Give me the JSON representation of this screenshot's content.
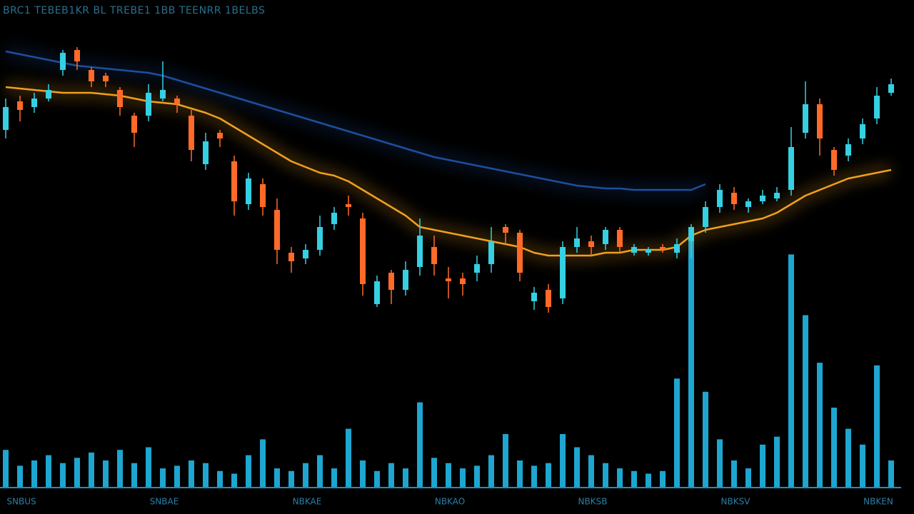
{
  "chart_data": {
    "type": "candlestick",
    "title": "BRC1 TEBEB1KR BL TREBE1 1BB TEENRR 1BELBS",
    "x": [
      null,
      "SNBUS",
      null,
      null,
      null,
      null,
      null,
      null,
      null,
      null,
      null,
      "SNBAE",
      null,
      null,
      null,
      null,
      null,
      null,
      null,
      null,
      null,
      "NBKAE",
      null,
      null,
      null,
      null,
      null,
      null,
      null,
      null,
      null,
      "NBKAO",
      null,
      null,
      null,
      null,
      null,
      null,
      null,
      null,
      null,
      "NBKSB",
      null,
      null,
      null,
      null,
      null,
      null,
      null,
      null,
      null,
      "NBKSV",
      null,
      null,
      null,
      null,
      null,
      null,
      null,
      null,
      null,
      "NBKEN",
      null
    ],
    "open": [
      67,
      77,
      75,
      78,
      88,
      95,
      88,
      86,
      81,
      72,
      72,
      78,
      78,
      72,
      55,
      66,
      56,
      41,
      48,
      39,
      24,
      22,
      25,
      34,
      41,
      36,
      6,
      17,
      11,
      19,
      26,
      15,
      15,
      17,
      20,
      33,
      31,
      7,
      11,
      8,
      26,
      28,
      27,
      32,
      24,
      24,
      26,
      24,
      28,
      33,
      40,
      45,
      40,
      42,
      43,
      46,
      66,
      76,
      60,
      58,
      64,
      71,
      80
    ],
    "high": [
      78,
      79,
      80,
      83,
      95,
      96,
      89,
      87,
      82,
      73,
      83,
      91,
      79,
      74,
      66,
      67,
      58,
      52,
      50,
      43,
      26,
      27,
      37,
      40,
      44,
      38,
      16,
      18,
      21,
      36,
      30,
      19,
      17,
      23,
      33,
      34,
      32,
      12,
      13,
      28,
      33,
      30,
      33,
      33,
      27,
      26,
      27,
      29,
      34,
      42,
      48,
      47,
      43,
      46,
      47,
      68,
      84,
      78,
      61,
      64,
      71,
      82,
      85
    ],
    "low": [
      64,
      70,
      73,
      77,
      86,
      88,
      82,
      82,
      72,
      61,
      70,
      77,
      73,
      56,
      53,
      61,
      37,
      39,
      37,
      20,
      17,
      20,
      23,
      32,
      37,
      9,
      5,
      6,
      9,
      16,
      16,
      8,
      9,
      14,
      17,
      27,
      14,
      4,
      3,
      6,
      24,
      23,
      25,
      24,
      23,
      23,
      24,
      22,
      22,
      31,
      38,
      39,
      38,
      41,
      42,
      44,
      64,
      58,
      51,
      56,
      62,
      69,
      79
    ],
    "close": [
      75,
      74,
      78,
      81,
      94,
      91,
      84,
      84,
      75,
      66,
      80,
      81,
      76,
      60,
      63,
      64,
      42,
      50,
      40,
      25,
      21,
      25,
      33,
      38,
      40,
      13,
      14,
      11,
      18,
      30,
      20,
      14,
      13,
      20,
      28,
      31,
      17,
      10,
      5,
      26,
      29,
      26,
      32,
      26,
      26,
      25,
      25,
      27,
      33,
      40,
      46,
      41,
      42,
      44,
      45,
      61,
      76,
      64,
      53,
      62,
      69,
      79,
      83
    ],
    "up_color": "#35d0e2",
    "down_color": "#ff6a28",
    "ylim": [
      0,
      100
    ],
    "lines": [
      {
        "color": "#1e4f9c",
        "values": [
          94.5,
          93.5,
          92.5,
          91.5,
          90.5,
          89.5,
          89,
          88.5,
          88,
          87.5,
          87,
          86,
          84.5,
          83,
          81.5,
          80,
          78.5,
          77,
          75.5,
          74,
          72.5,
          71,
          69.5,
          68,
          66.5,
          65,
          63.5,
          62,
          60.5,
          59,
          57.5,
          56.5,
          55.5,
          54.5,
          53.5,
          52.5,
          51.5,
          50.5,
          49.5,
          48.5,
          47.5,
          47,
          46.5,
          46.5,
          46,
          46,
          46,
          46,
          46,
          48,
          null,
          null,
          null,
          null,
          null,
          null,
          null,
          null,
          null,
          null,
          null,
          null,
          null
        ]
      },
      {
        "color": "#f0a020",
        "values": [
          82,
          81.5,
          81,
          80.5,
          80,
          80,
          80,
          79.5,
          79,
          78,
          77,
          76.5,
          76,
          74.5,
          73,
          71,
          68,
          65,
          62,
          59,
          56,
          54,
          52,
          51,
          49,
          46,
          43,
          40,
          37,
          33,
          32,
          31,
          30,
          29,
          28,
          27,
          26,
          24,
          23,
          23,
          23,
          23,
          24,
          24,
          25,
          25,
          25,
          26,
          30,
          32,
          33,
          34,
          35,
          36,
          38,
          41,
          44,
          46,
          48,
          50,
          51,
          52,
          53
        ]
      }
    ],
    "volume": {
      "color": "#1ea6d0",
      "ylim": [
        0,
        100
      ],
      "values": [
        14,
        8,
        10,
        12,
        9,
        11,
        13,
        10,
        14,
        9,
        15,
        7,
        8,
        10,
        9,
        6,
        5,
        12,
        18,
        7,
        6,
        9,
        12,
        7,
        22,
        10,
        6,
        9,
        7,
        32,
        11,
        9,
        7,
        8,
        12,
        20,
        10,
        8,
        9,
        20,
        15,
        12,
        9,
        7,
        6,
        5,
        6,
        41,
        98,
        36,
        18,
        10,
        7,
        16,
        19,
        88,
        65,
        47,
        30,
        22,
        16,
        46,
        10
      ]
    }
  }
}
